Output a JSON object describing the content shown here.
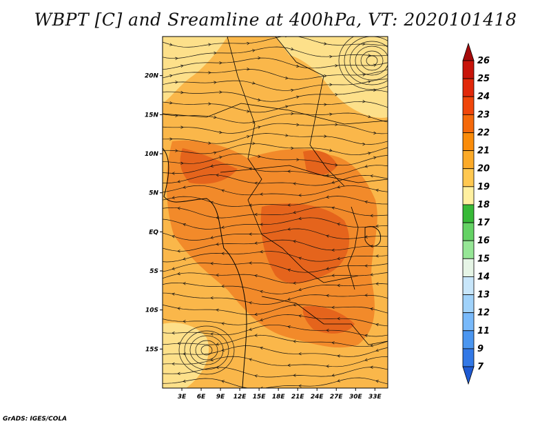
{
  "title": "WBPT [C] and Sreamline at 400hPa, VT: 2020101418",
  "credit": "GrADS: IGES/COLA",
  "map": {
    "lat_ticks": [
      "20N",
      "15N",
      "10N",
      "5N",
      "EQ",
      "5S",
      "10S",
      "15S"
    ],
    "lon_ticks": [
      "3E",
      "6E",
      "9E",
      "12E",
      "15E",
      "18E",
      "21E",
      "24E",
      "27E",
      "30E",
      "33E"
    ],
    "lon_range": [
      0,
      35
    ],
    "lat_range": [
      -20,
      25
    ]
  },
  "colorbar": {
    "labels": [
      "26",
      "25",
      "24",
      "23",
      "22",
      "21",
      "20",
      "19",
      "18",
      "17",
      "16",
      "15",
      "14",
      "13",
      "12",
      "11",
      "9",
      "7"
    ],
    "colors": [
      "#a50a0a",
      "#c8140a",
      "#e1280a",
      "#f0460a",
      "#f5690a",
      "#fa8c0a",
      "#fcaa28",
      "#ffc850",
      "#fff0a0",
      "#37b937",
      "#64d264",
      "#96e696",
      "#e6f5e6",
      "#c8e6fa",
      "#a0d2fa",
      "#78b9fa",
      "#4b96f0",
      "#3278e6",
      "#1e5ad2"
    ]
  },
  "fields": {
    "base_color": "#fab74a",
    "cool_color": "#fde08a",
    "warm_color": "#f28a2a",
    "hot_color": "#e5641c"
  }
}
